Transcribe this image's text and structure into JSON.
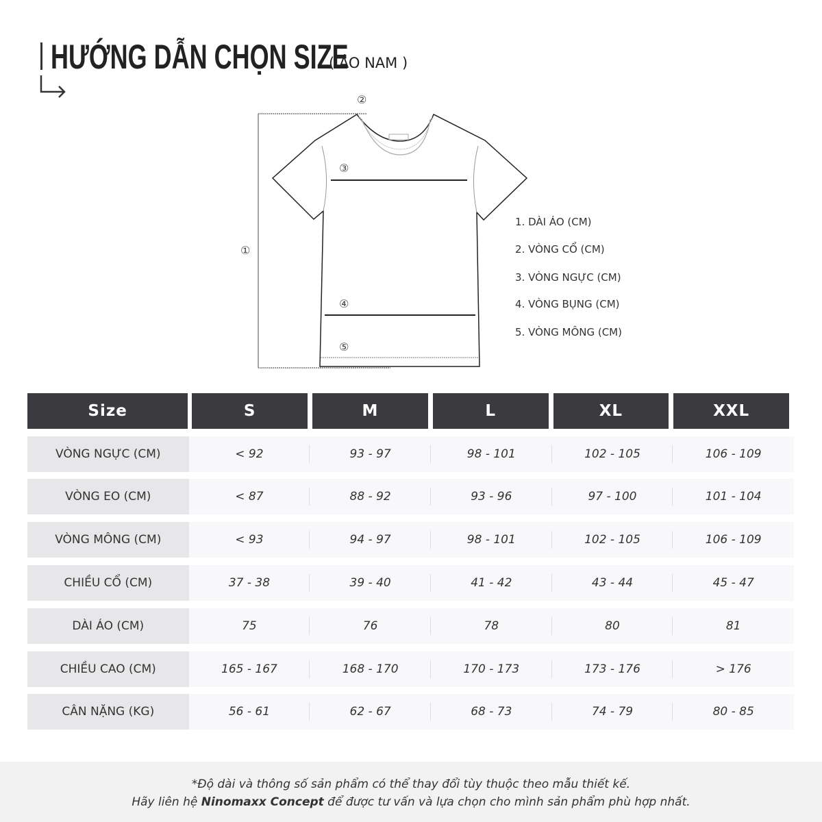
{
  "header": {
    "title": "HƯỚNG DẪN CHỌN SIZE",
    "subtitle": "( ÁO NAM )"
  },
  "diagram": {
    "markers": [
      "①",
      "②",
      "③",
      "④",
      "⑤"
    ],
    "legend": [
      "1. DÀI ÁO (CM)",
      "2. VÒNG CỔ (CM)",
      "3. VÒNG NGỰC (CM)",
      "4. VÒNG BỤNG (CM)",
      "5. VÒNG MÔNG (CM)"
    ]
  },
  "table": {
    "headers": [
      "Size",
      "S",
      "M",
      "L",
      "XL",
      "XXL"
    ],
    "rows": [
      {
        "label": "VÒNG NGỰC (CM)",
        "values": [
          "< 92",
          "93 - 97",
          "98 - 101",
          "102 - 105",
          "106 - 109"
        ]
      },
      {
        "label": "VÒNG EO (CM)",
        "values": [
          "< 87",
          "88 - 92",
          "93 - 96",
          "97 - 100",
          "101 - 104"
        ]
      },
      {
        "label": "VÒNG MÔNG (CM)",
        "values": [
          "< 93",
          "94 - 97",
          "98 - 101",
          "102 - 105",
          "106 - 109"
        ]
      },
      {
        "label": "CHIỀU CỔ (CM)",
        "values": [
          "37 - 38",
          "39 - 40",
          "41 - 42",
          "43 - 44",
          "45 - 47"
        ]
      },
      {
        "label": "DÀI ÁO (CM)",
        "values": [
          "75",
          "76",
          "78",
          "80",
          "81"
        ]
      },
      {
        "label": "CHIỀU CAO (CM)",
        "values": [
          "165 - 167",
          "168 - 170",
          "170 - 173",
          "173 - 176",
          "> 176"
        ]
      },
      {
        "label": "CÂN NẶNG (KG)",
        "values": [
          "56 - 61",
          "62 - 67",
          "68 - 73",
          "74 - 79",
          "80 - 85"
        ]
      }
    ]
  },
  "footer": {
    "line1": "*Độ dài và thông số sản phẩm có thể thay đổi tùy thuộc theo mẫu thiết kế.",
    "line2_pre": "Hãy liên hệ ",
    "line2_brand": "Ninomaxx Concept",
    "line2_post": " để được tư vấn và lựa chọn cho mình sản phẩm phù hợp nhất."
  },
  "colors": {
    "header_bg": "#3b3b3f",
    "label_bg": "#e7e7e9",
    "row_bg": "#f8f8fa",
    "footer_bg": "#f2f2f2"
  }
}
